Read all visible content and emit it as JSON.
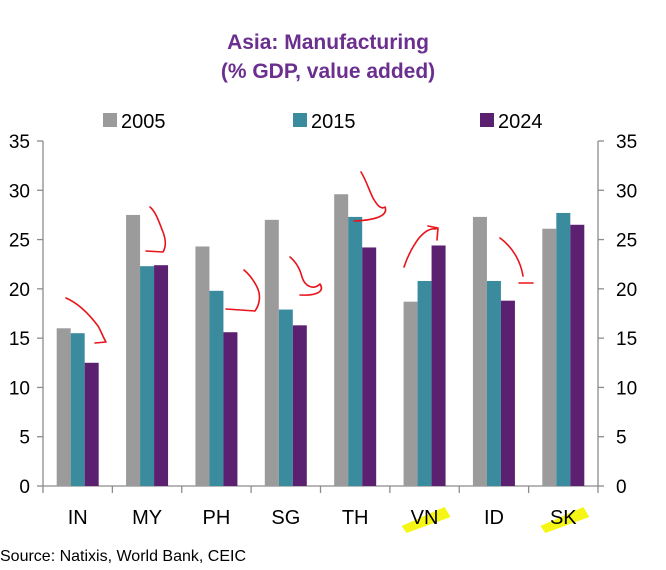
{
  "chart_data": {
    "type": "bar",
    "title": "Asia: Manufacturing",
    "subtitle": "(% GDP, value added)",
    "categories": [
      "IN",
      "MY",
      "PH",
      "SG",
      "TH",
      "VN",
      "ID",
      "SK"
    ],
    "series": [
      {
        "name": "2005",
        "color": "#9b9b9b",
        "values": [
          16.0,
          27.5,
          24.3,
          27.0,
          29.6,
          18.7,
          27.3,
          26.1
        ]
      },
      {
        "name": "2015",
        "color": "#3b8b9e",
        "values": [
          15.5,
          22.3,
          19.8,
          17.9,
          27.3,
          20.8,
          20.8,
          27.7
        ]
      },
      {
        "name": "2024",
        "color": "#5c2070",
        "values": [
          12.5,
          22.4,
          15.6,
          16.3,
          24.2,
          24.4,
          18.8,
          26.5
        ]
      }
    ],
    "ylim": [
      0,
      35
    ],
    "yticks": [
      0,
      5,
      10,
      15,
      20,
      25,
      30,
      35
    ],
    "ytick_labels": [
      "0",
      "5",
      "10",
      "15",
      "20",
      "25",
      "30",
      "35"
    ],
    "secondary_axis": true,
    "legend_position": "top",
    "grid": false,
    "highlighted_categories": [
      "VN",
      "SK"
    ],
    "highlight_color": "#f5f50a",
    "annotation_color": "#e8141b",
    "source": "Source: Natixis, World Bank, CEIC"
  }
}
